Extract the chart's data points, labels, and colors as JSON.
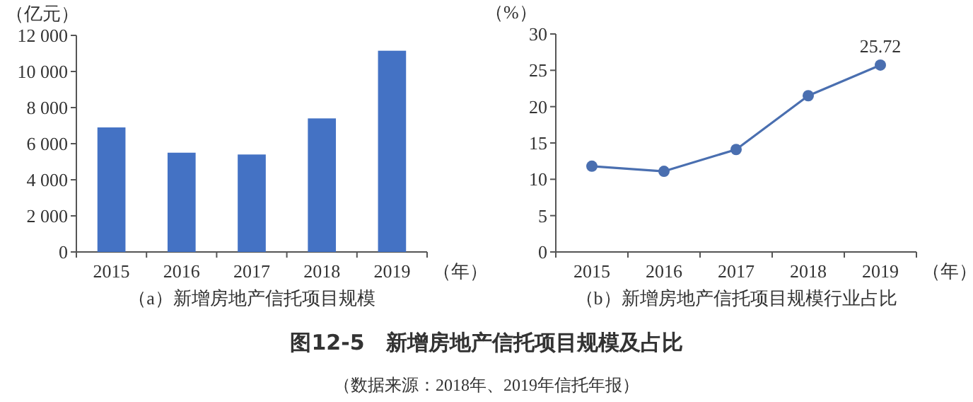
{
  "chart_data": [
    {
      "type": "bar",
      "title": "（a）新增房地产信托项目规模",
      "ylabel": "（亿元）",
      "xlabel": "（年）",
      "categories": [
        "2015",
        "2016",
        "2017",
        "2018",
        "2019"
      ],
      "series": [
        {
          "color": "#4472c4",
          "values": [
            6900,
            5500,
            5400,
            7400,
            11150
          ]
        }
      ],
      "ylim": [
        0,
        12000
      ],
      "yticks": [
        0,
        {
          "value": 2000,
          "label": "2 000"
        },
        {
          "value": 4000,
          "label": "4 000"
        },
        {
          "value": 6000,
          "label": "6 000"
        },
        {
          "value": 8000,
          "label": "8 000"
        },
        {
          "value": 10000,
          "label": "10 000"
        },
        {
          "value": 12000,
          "label": "12 000"
        }
      ],
      "grid": false
    },
    {
      "type": "line",
      "title": "（b）新增房地产信托项目规模行业占比",
      "ylabel": "（%）",
      "xlabel": "（年）",
      "categories": [
        "2015",
        "2016",
        "2017",
        "2018",
        "2019"
      ],
      "series": [
        {
          "color": "#4a6fb0",
          "values": [
            11.8,
            11.1,
            14.1,
            21.5,
            25.72
          ],
          "value_labels": [
            null,
            null,
            null,
            null,
            "25.72"
          ]
        }
      ],
      "ylim": [
        0,
        30
      ],
      "yticks": [
        0,
        5,
        10,
        15,
        20,
        25,
        30
      ],
      "marker": "circle",
      "line_style": "solid",
      "grid": false
    },
    {
      "type": "other",
      "title": "图12-5　新增房地产信托项目规模及占比",
      "annotations": [
        "（数据来源：2018年、2019年信托年报）"
      ]
    }
  ]
}
